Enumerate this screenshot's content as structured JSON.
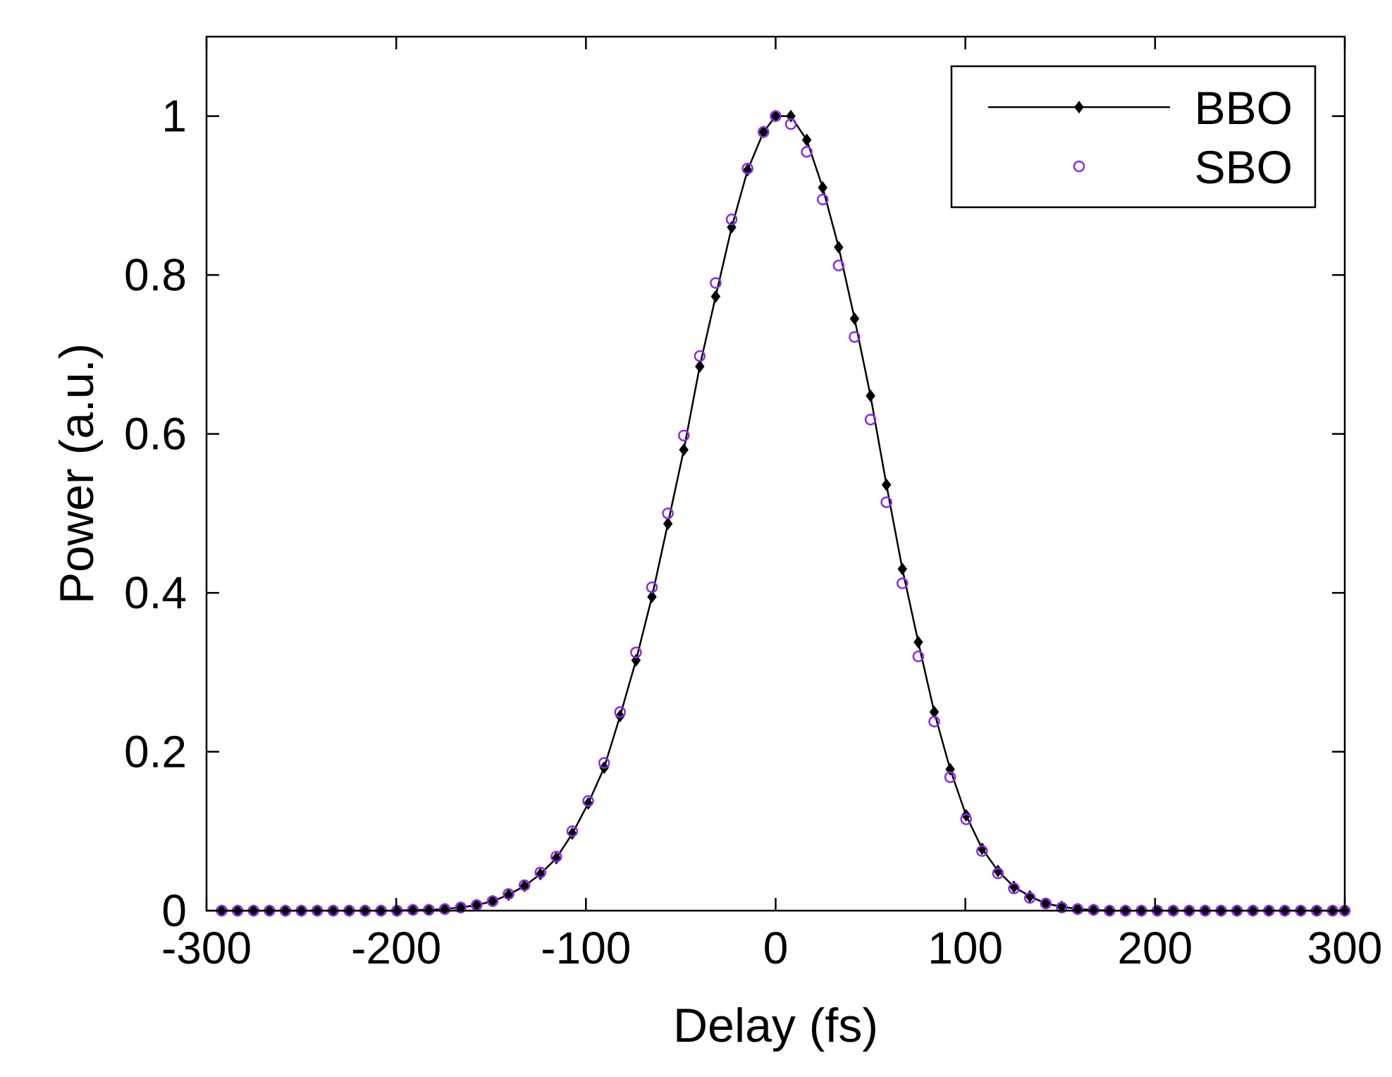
{
  "chart_data": {
    "type": "line",
    "xlabel": "Delay (fs)",
    "ylabel": "Power (a.u.)",
    "xlim": [
      -300,
      300
    ],
    "ylim": [
      0,
      1.1
    ],
    "xticks": [
      -300,
      -200,
      -100,
      0,
      100,
      200,
      300
    ],
    "yticks": [
      0,
      0.2,
      0.4,
      0.6,
      0.8,
      1
    ],
    "xtick_labels": [
      "-300",
      "-200",
      "-100",
      "0",
      "100",
      "200",
      "300"
    ],
    "ytick_labels": [
      "0",
      "0.2",
      "0.4",
      "0.6",
      "0.8",
      "1"
    ],
    "grid": false,
    "legend_position": "top-right",
    "series": [
      {
        "name": "BBO",
        "style": "line-diamond",
        "color": "#000000",
        "x": [
          -292,
          -283.6,
          -275.2,
          -266.8,
          -258.4,
          -250,
          -241.6,
          -233.2,
          -224.8,
          -216.4,
          -208,
          -199.6,
          -191.2,
          -182.8,
          -174.4,
          -166,
          -157.6,
          -149.2,
          -140.8,
          -132.4,
          -124,
          -115.6,
          -107.2,
          -98.8,
          -90.4,
          -82,
          -73.6,
          -65.2,
          -56.8,
          -48.4,
          -40,
          -31.6,
          -23.2,
          -14.8,
          -6.4,
          0,
          8,
          16.4,
          24.8,
          33.2,
          41.6,
          50,
          58.4,
          66.8,
          75.2,
          83.6,
          92,
          100.4,
          108.8,
          117.2,
          125.6,
          134,
          142.4,
          150.8,
          159.2,
          167.6,
          176,
          184.4,
          192.8,
          201.2,
          209.6,
          218,
          226.4,
          234.8,
          243.2,
          251.6,
          260,
          268.4,
          276.8,
          285.2,
          293.6,
          300
        ],
        "y": [
          0,
          0,
          0,
          0,
          0,
          0,
          0,
          0,
          0,
          0,
          0,
          0,
          0.001,
          0.001,
          0.002,
          0.004,
          0.007,
          0.012,
          0.02,
          0.031,
          0.046,
          0.066,
          0.097,
          0.135,
          0.18,
          0.245,
          0.315,
          0.395,
          0.487,
          0.58,
          0.685,
          0.773,
          0.86,
          0.932,
          0.98,
          1.0,
          1.0,
          0.97,
          0.91,
          0.835,
          0.745,
          0.648,
          0.536,
          0.43,
          0.338,
          0.25,
          0.178,
          0.12,
          0.078,
          0.05,
          0.03,
          0.018,
          0.009,
          0.005,
          0.002,
          0.001,
          0,
          0,
          0,
          0,
          0,
          0,
          0,
          0,
          0,
          0,
          0,
          0,
          0,
          0,
          0,
          0
        ]
      },
      {
        "name": "SBO",
        "style": "circle",
        "color": "#8a2be2",
        "x": [
          -292,
          -283.6,
          -275.2,
          -266.8,
          -258.4,
          -250,
          -241.6,
          -233.2,
          -224.8,
          -216.4,
          -208,
          -199.6,
          -191.2,
          -182.8,
          -174.4,
          -166,
          -157.6,
          -149.2,
          -140.8,
          -132.4,
          -124,
          -115.6,
          -107.2,
          -98.8,
          -90.4,
          -82,
          -73.6,
          -65.2,
          -56.8,
          -48.4,
          -40,
          -31.6,
          -23.2,
          -14.8,
          -6.4,
          0,
          8,
          16.4,
          24.8,
          33.2,
          41.6,
          50,
          58.4,
          66.8,
          75.2,
          83.6,
          92,
          100.4,
          108.8,
          117.2,
          125.6,
          134,
          142.4,
          150.8,
          159.2,
          167.6,
          176,
          184.4,
          192.8,
          201.2,
          209.6,
          218,
          226.4,
          234.8,
          243.2,
          251.6,
          260,
          268.4,
          276.8,
          285.2,
          293.6,
          300
        ],
        "y": [
          0,
          0,
          0,
          0,
          0,
          0,
          0,
          0,
          0,
          0,
          0,
          0,
          0.001,
          0.001,
          0.002,
          0.004,
          0.007,
          0.012,
          0.021,
          0.032,
          0.048,
          0.068,
          0.1,
          0.138,
          0.186,
          0.25,
          0.325,
          0.407,
          0.5,
          0.598,
          0.698,
          0.79,
          0.87,
          0.934,
          0.98,
          1.0,
          0.99,
          0.955,
          0.895,
          0.812,
          0.722,
          0.618,
          0.514,
          0.412,
          0.32,
          0.238,
          0.168,
          0.115,
          0.075,
          0.047,
          0.028,
          0.016,
          0.009,
          0.004,
          0.002,
          0.001,
          0,
          0,
          0,
          0,
          0,
          0,
          0,
          0,
          0,
          0,
          0,
          0,
          0,
          0,
          0,
          0
        ]
      }
    ]
  }
}
